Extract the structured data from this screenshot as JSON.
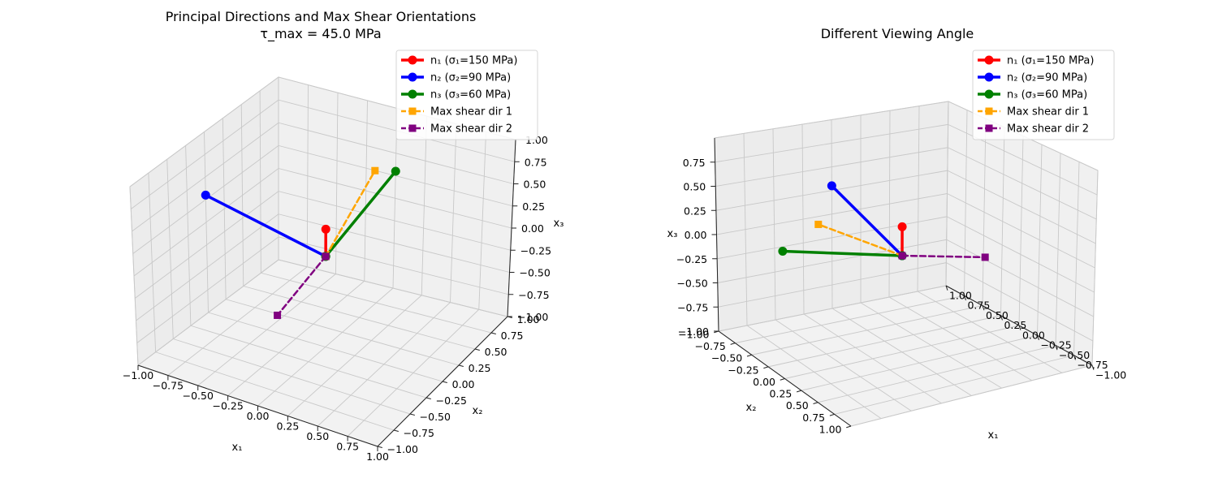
{
  "chart_data": [
    {
      "type": "line3d",
      "title": "Principal Directions and Max Shear Orientations",
      "subtitle": "τ_max = 45.0 MPa",
      "xlabel": "x₁",
      "ylabel": "x₂",
      "zlabel": "x₃",
      "xlim": [
        -1.0,
        1.0
      ],
      "ylim": [
        -1.0,
        1.0
      ],
      "zlim": [
        -1.0,
        1.0
      ],
      "x_ticks": [
        "−1.00",
        "−0.75",
        "−0.50",
        "−0.25",
        "0.00",
        "0.25",
        "0.50",
        "0.75",
        "1.00"
      ],
      "y_ticks": [
        "−1.00",
        "−0.75",
        "−0.50",
        "−0.25",
        "0.00",
        "0.25",
        "0.50",
        "0.75",
        "1.00"
      ],
      "z_ticks": [
        "−1.00",
        "−0.75",
        "−0.50",
        "−0.25",
        "0.00",
        "0.25",
        "0.50",
        "0.75",
        "1.00"
      ],
      "grid": true,
      "legend_position": "top-right",
      "view": "elev 30, azim -60",
      "series": [
        {
          "name": "n₁ (σ₁=150 MPa)",
          "color": "#ff0000",
          "style": "solid",
          "marker": "circle",
          "points": [
            [
              0,
              0,
              0
            ],
            [
              0,
              0,
              0.3
            ]
          ]
        },
        {
          "name": "n₂ (σ₂=90 MPa)",
          "color": "#0000ff",
          "style": "solid",
          "marker": "circle",
          "points": [
            [
              0,
              0,
              0
            ],
            [
              -1.0,
              0,
              0.3
            ]
          ]
        },
        {
          "name": "n₃ (σ₃=60 MPa)",
          "color": "#008000",
          "style": "solid",
          "marker": "circle",
          "points": [
            [
              0,
              0,
              0
            ],
            [
              0,
              1.0,
              0.3
            ]
          ]
        },
        {
          "name": "Max shear dir 1",
          "color": "#ffa500",
          "style": "dashed",
          "marker": "square",
          "points": [
            [
              0,
              0,
              0
            ],
            [
              0,
              0.7,
              0.5
            ]
          ]
        },
        {
          "name": "Max shear dir 2",
          "color": "#800080",
          "style": "dashed",
          "marker": "square",
          "points": [
            [
              0,
              0,
              0
            ],
            [
              0,
              -0.7,
              -0.2
            ]
          ]
        }
      ]
    },
    {
      "type": "line3d",
      "title": "Different Viewing Angle",
      "xlabel": "x₁",
      "ylabel": "x₂",
      "zlabel": "x₃",
      "xlim": [
        -1.0,
        1.0
      ],
      "ylim": [
        -1.0,
        1.0
      ],
      "zlim": [
        -1.0,
        1.0
      ],
      "x_ticks": [
        "−1.00",
        "−0.75",
        "−0.50",
        "−0.25",
        "0.00",
        "0.25",
        "0.50",
        "0.75",
        "1.00"
      ],
      "y_ticks": [
        "−1.00",
        "−0.75",
        "−0.50",
        "−0.25",
        "0.00",
        "0.25",
        "0.50",
        "0.75",
        "1.00"
      ],
      "z_ticks": [
        "−1.00",
        "−0.75",
        "−0.50",
        "−0.25",
        "0.00",
        "0.25",
        "0.50",
        "0.75"
      ],
      "grid": true,
      "legend_position": "top-right",
      "view": "elev 20, azim 45",
      "series": [
        {
          "name": "n₁ (σ₁=150 MPa)",
          "color": "#ff0000",
          "style": "solid",
          "marker": "circle",
          "points": [
            [
              0,
              0,
              0
            ],
            [
              0,
              0,
              0.3
            ]
          ]
        },
        {
          "name": "n₂ (σ₂=90 MPa)",
          "color": "#0000ff",
          "style": "solid",
          "marker": "circle",
          "points": [
            [
              0,
              0,
              0
            ],
            [
              -1.0,
              0,
              0.3
            ]
          ]
        },
        {
          "name": "n₃ (σ₃=60 MPa)",
          "color": "#008000",
          "style": "solid",
          "marker": "circle",
          "points": [
            [
              0,
              0,
              0
            ],
            [
              0,
              1.0,
              0.3
            ]
          ]
        },
        {
          "name": "Max shear dir 1",
          "color": "#ffa500",
          "style": "dashed",
          "marker": "square",
          "points": [
            [
              0,
              0,
              0
            ],
            [
              0,
              0.7,
              0.5
            ]
          ]
        },
        {
          "name": "Max shear dir 2",
          "color": "#800080",
          "style": "dashed",
          "marker": "square",
          "points": [
            [
              0,
              0,
              0
            ],
            [
              0,
              -0.7,
              -0.2
            ]
          ]
        }
      ]
    }
  ]
}
